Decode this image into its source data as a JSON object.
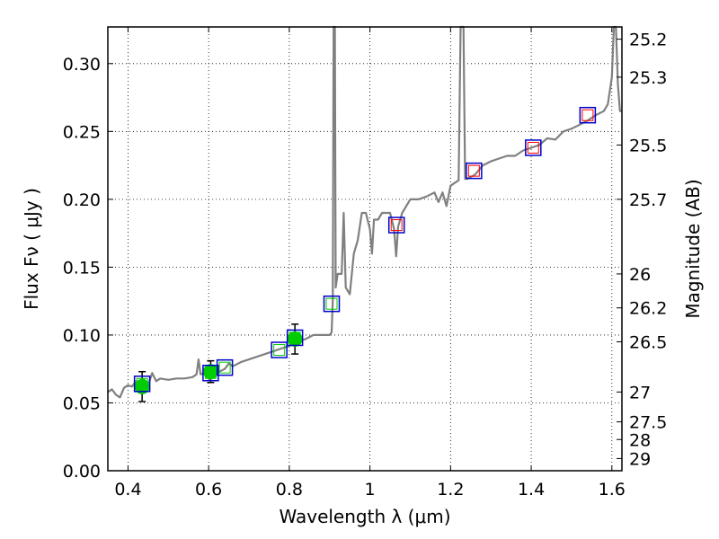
{
  "chart_data": {
    "type": "scatter",
    "title": "",
    "xlabel": "Wavelength  λ (μm)",
    "ylabel": "Flux  Fν  ( μJy )",
    "ylabel_right": "Magnitude (AB)",
    "xlim": [
      0.35,
      1.625
    ],
    "ylim": [
      0.0,
      0.327
    ],
    "grid": true,
    "grid_style": "dotted",
    "x_ticks": [
      0.4,
      0.6,
      0.8,
      1.0,
      1.2,
      1.4,
      1.6
    ],
    "x_tick_labels": [
      "0.4",
      "0.6",
      "0.8",
      "1",
      "1.2",
      "1.4",
      "1.6"
    ],
    "y_ticks": [
      0.0,
      0.05,
      0.1,
      0.15,
      0.2,
      0.25,
      0.3
    ],
    "y_tick_labels": [
      "0.00",
      "0.05",
      "0.10",
      "0.15",
      "0.20",
      "0.25",
      "0.30"
    ],
    "right_ticks": [
      {
        "flux": 0.318,
        "label": "25.2"
      },
      {
        "flux": 0.29,
        "label": "25.3"
      },
      {
        "flux": 0.24,
        "label": "25.5"
      },
      {
        "flux": 0.2,
        "label": "25.7"
      },
      {
        "flux": 0.145,
        "label": "26"
      },
      {
        "flux": 0.12,
        "label": "26.2"
      },
      {
        "flux": 0.095,
        "label": "26.5"
      },
      {
        "flux": 0.058,
        "label": "27"
      },
      {
        "flux": 0.036,
        "label": "27.5"
      },
      {
        "flux": 0.023,
        "label": "28"
      },
      {
        "flux": 0.009,
        "label": "29"
      }
    ],
    "series": [
      {
        "type": "line",
        "color": "#808080",
        "points": [
          [
            0.35,
            0.058
          ],
          [
            0.36,
            0.06
          ],
          [
            0.37,
            0.056
          ],
          [
            0.38,
            0.054
          ],
          [
            0.39,
            0.061
          ],
          [
            0.4,
            0.063
          ],
          [
            0.41,
            0.062
          ],
          [
            0.42,
            0.066
          ],
          [
            0.43,
            0.064
          ],
          [
            0.44,
            0.067
          ],
          [
            0.45,
            0.063
          ],
          [
            0.46,
            0.072
          ],
          [
            0.47,
            0.066
          ],
          [
            0.48,
            0.068
          ],
          [
            0.5,
            0.067
          ],
          [
            0.52,
            0.068
          ],
          [
            0.54,
            0.068
          ],
          [
            0.56,
            0.069
          ],
          [
            0.57,
            0.071
          ],
          [
            0.575,
            0.082
          ],
          [
            0.58,
            0.071
          ],
          [
            0.6,
            0.073
          ],
          [
            0.62,
            0.072
          ],
          [
            0.64,
            0.075
          ],
          [
            0.65,
            0.079
          ],
          [
            0.66,
            0.077
          ],
          [
            0.68,
            0.08
          ],
          [
            0.7,
            0.082
          ],
          [
            0.72,
            0.084
          ],
          [
            0.74,
            0.086
          ],
          [
            0.76,
            0.088
          ],
          [
            0.78,
            0.09
          ],
          [
            0.8,
            0.092
          ],
          [
            0.82,
            0.095
          ],
          [
            0.84,
            0.097
          ],
          [
            0.86,
            0.1
          ],
          [
            0.88,
            0.1
          ],
          [
            0.9,
            0.1
          ],
          [
            0.905,
            0.102
          ],
          [
            0.908,
            0.126
          ],
          [
            0.91,
            0.327
          ],
          [
            0.913,
            0.327
          ],
          [
            0.915,
            0.135
          ],
          [
            0.92,
            0.145
          ],
          [
            0.93,
            0.145
          ],
          [
            0.935,
            0.19
          ],
          [
            0.94,
            0.135
          ],
          [
            0.95,
            0.13
          ],
          [
            0.96,
            0.16
          ],
          [
            0.97,
            0.17
          ],
          [
            0.98,
            0.19
          ],
          [
            0.99,
            0.19
          ],
          [
            1.0,
            0.178
          ],
          [
            1.005,
            0.16
          ],
          [
            1.01,
            0.185
          ],
          [
            1.02,
            0.185
          ],
          [
            1.03,
            0.19
          ],
          [
            1.04,
            0.19
          ],
          [
            1.05,
            0.19
          ],
          [
            1.06,
            0.178
          ],
          [
            1.065,
            0.158
          ],
          [
            1.07,
            0.18
          ],
          [
            1.08,
            0.19
          ],
          [
            1.1,
            0.2
          ],
          [
            1.12,
            0.2
          ],
          [
            1.14,
            0.202
          ],
          [
            1.16,
            0.205
          ],
          [
            1.17,
            0.198
          ],
          [
            1.18,
            0.205
          ],
          [
            1.19,
            0.195
          ],
          [
            1.2,
            0.21
          ],
          [
            1.21,
            0.212
          ],
          [
            1.22,
            0.214
          ],
          [
            1.225,
            0.327
          ],
          [
            1.232,
            0.327
          ],
          [
            1.236,
            0.215
          ],
          [
            1.24,
            0.215
          ],
          [
            1.26,
            0.218
          ],
          [
            1.28,
            0.225
          ],
          [
            1.3,
            0.228
          ],
          [
            1.32,
            0.23
          ],
          [
            1.34,
            0.232
          ],
          [
            1.36,
            0.232
          ],
          [
            1.38,
            0.236
          ],
          [
            1.4,
            0.238
          ],
          [
            1.42,
            0.24
          ],
          [
            1.44,
            0.245
          ],
          [
            1.46,
            0.244
          ],
          [
            1.48,
            0.25
          ],
          [
            1.5,
            0.252
          ],
          [
            1.52,
            0.255
          ],
          [
            1.54,
            0.258
          ],
          [
            1.56,
            0.262
          ],
          [
            1.58,
            0.265
          ],
          [
            1.59,
            0.27
          ],
          [
            1.6,
            0.29
          ],
          [
            1.605,
            0.327
          ],
          [
            1.61,
            0.327
          ],
          [
            1.615,
            0.285
          ],
          [
            1.62,
            0.265
          ],
          [
            1.625,
            0.265
          ]
        ]
      },
      {
        "type": "points_with_errors",
        "color": "#00cc00",
        "points": [
          {
            "x": 0.435,
            "y": 0.062,
            "yerr": 0.011
          },
          {
            "x": 0.605,
            "y": 0.073,
            "yerr": 0.008
          },
          {
            "x": 0.814,
            "y": 0.097,
            "yerr": 0.011
          }
        ]
      },
      {
        "type": "open_squares_blue",
        "color": "#0000cc",
        "points": [
          {
            "x": 0.435,
            "y": 0.064
          },
          {
            "x": 0.605,
            "y": 0.072
          },
          {
            "x": 0.64,
            "y": 0.076
          },
          {
            "x": 0.775,
            "y": 0.089
          },
          {
            "x": 0.814,
            "y": 0.098
          },
          {
            "x": 0.905,
            "y": 0.123
          },
          {
            "x": 1.066,
            "y": 0.181
          },
          {
            "x": 1.258,
            "y": 0.221
          },
          {
            "x": 1.405,
            "y": 0.238
          },
          {
            "x": 1.54,
            "y": 0.262
          }
        ]
      },
      {
        "type": "open_squares_inner",
        "points": [
          {
            "x": 0.435,
            "y": 0.064,
            "color": "#00cc00"
          },
          {
            "x": 0.605,
            "y": 0.072,
            "color": "#00cc00"
          },
          {
            "x": 0.64,
            "y": 0.076,
            "color": "#00cc00"
          },
          {
            "x": 0.775,
            "y": 0.089,
            "color": "#00cc00"
          },
          {
            "x": 0.814,
            "y": 0.098,
            "color": "#00cc00"
          },
          {
            "x": 0.905,
            "y": 0.123,
            "color": "#00cc00"
          },
          {
            "x": 1.066,
            "y": 0.181,
            "color": "#ff0000"
          },
          {
            "x": 1.258,
            "y": 0.221,
            "color": "#ff0000"
          },
          {
            "x": 1.405,
            "y": 0.238,
            "color": "#ff0000"
          },
          {
            "x": 1.54,
            "y": 0.262,
            "color": "#ff0000"
          }
        ]
      }
    ]
  }
}
